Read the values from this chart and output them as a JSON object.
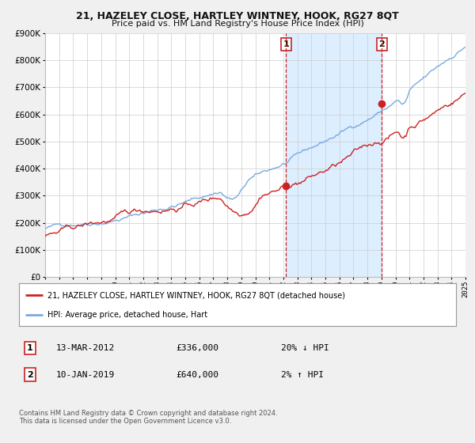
{
  "title": "21, HAZELEY CLOSE, HARTLEY WINTNEY, HOOK, RG27 8QT",
  "subtitle": "Price paid vs. HM Land Registry's House Price Index (HPI)",
  "x_start_year": 1995,
  "x_end_year": 2025,
  "y_min": 0,
  "y_max": 900000,
  "y_ticks": [
    0,
    100000,
    200000,
    300000,
    400000,
    500000,
    600000,
    700000,
    800000,
    900000
  ],
  "y_tick_labels": [
    "£0",
    "£100K",
    "£200K",
    "£300K",
    "£400K",
    "£500K",
    "£600K",
    "£700K",
    "£800K",
    "£900K"
  ],
  "hpi_line_color": "#7aaadd",
  "price_line_color": "#cc2222",
  "point1_date_num": 2012.2,
  "point1_value": 336000,
  "point1_label": "1",
  "point1_date_str": "13-MAR-2012",
  "point1_price_str": "£336,000",
  "point1_hpi_str": "20% ↓ HPI",
  "point2_date_num": 2019.03,
  "point2_value": 640000,
  "point2_label": "2",
  "point2_date_str": "10-JAN-2019",
  "point2_price_str": "£640,000",
  "point2_hpi_str": "2% ↑ HPI",
  "shade_color": "#ddeeff",
  "legend_line1": "21, HAZELEY CLOSE, HARTLEY WINTNEY, HOOK, RG27 8QT (detached house)",
  "legend_line2": "HPI: Average price, detached house, Hart",
  "footnote": "Contains HM Land Registry data © Crown copyright and database right 2024.\nThis data is licensed under the Open Government Licence v3.0.",
  "background_color": "#f0f0f0",
  "plot_bg_color": "#ffffff"
}
